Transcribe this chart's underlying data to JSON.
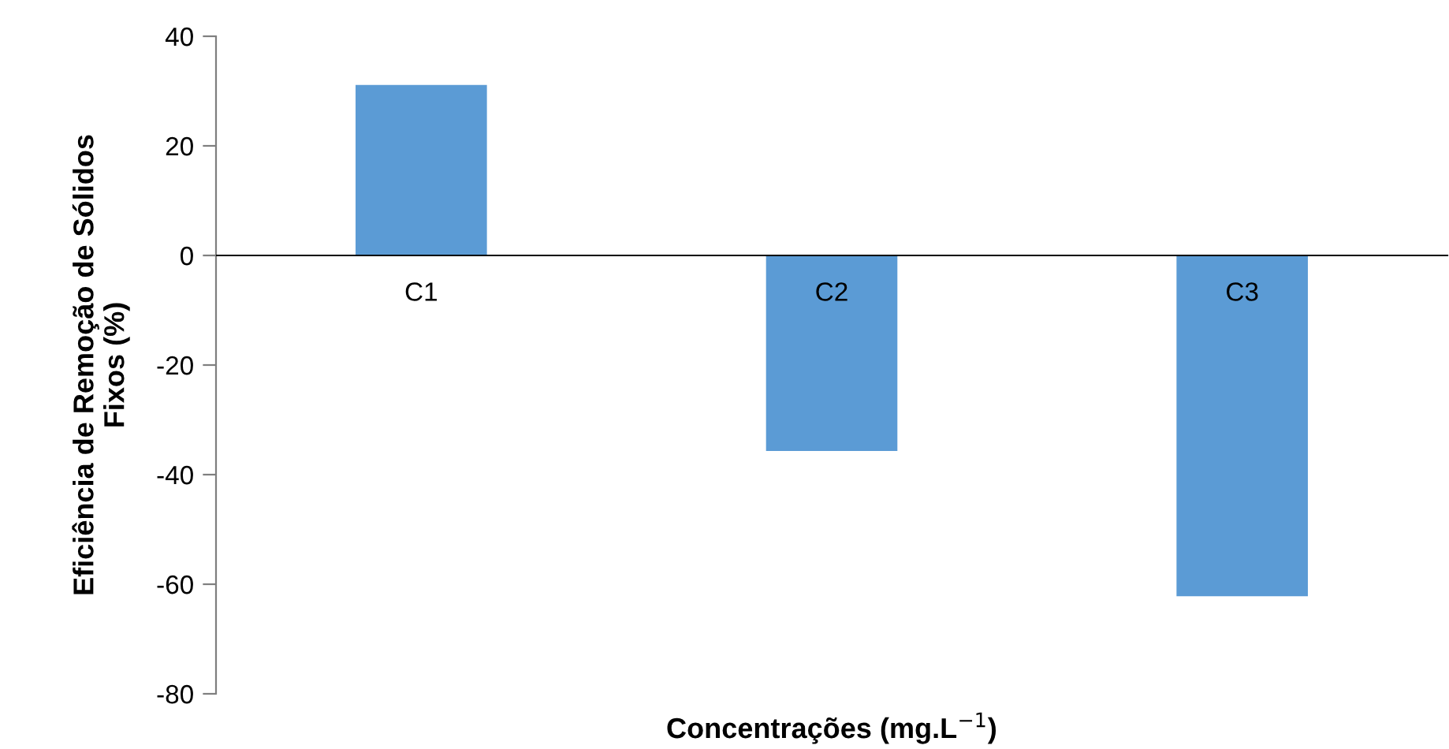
{
  "chart_data": {
    "type": "bar",
    "xlabel": "Concentrações (mg.L$^{−1}$)",
    "ylabel": "Eficiência de Remoção de Sólidos\nFixos (%)",
    "categories": [
      "C1",
      "C2",
      "C3"
    ],
    "values": [
      31.1,
      -35.7,
      -62.2
    ],
    "color": "#5b9bd5",
    "ylim": [
      -80,
      40
    ],
    "yticks": [
      -80,
      -60,
      -40,
      -20,
      0,
      20,
      40
    ],
    "grid": false,
    "legend": false
  }
}
